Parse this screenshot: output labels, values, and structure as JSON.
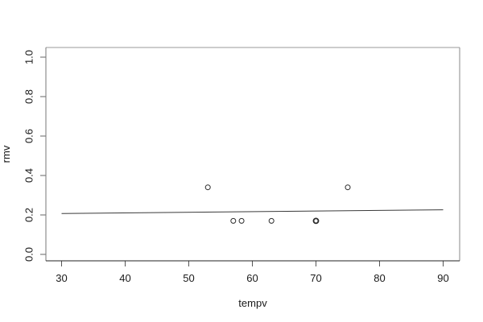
{
  "figure": {
    "kind": "r-base-scatter-plot",
    "background": "#ffffff"
  },
  "chart_data": {
    "type": "scatter",
    "title": "",
    "xlabel": "tempv",
    "ylabel": "rmv",
    "xlim": [
      30,
      90
    ],
    "ylim": [
      0.0,
      1.0
    ],
    "grid": false,
    "legend_position": "none",
    "point_style": "open-circle",
    "x_ticks": [
      30,
      40,
      50,
      60,
      70,
      80,
      90
    ],
    "x_tick_labels": [
      "30",
      "40",
      "50",
      "60",
      "70",
      "80",
      "90"
    ],
    "y_ticks": [
      0.0,
      0.2,
      0.4,
      0.6,
      0.8,
      1.0
    ],
    "y_tick_labels": [
      "0.0",
      "0.2",
      "0.4",
      "0.6",
      "0.8",
      "1.0"
    ],
    "points": [
      {
        "x": 53,
        "y": 0.34,
        "overplotted": false
      },
      {
        "x": 57,
        "y": 0.17,
        "overplotted": false
      },
      {
        "x": 58.3,
        "y": 0.17,
        "overplotted": false
      },
      {
        "x": 63,
        "y": 0.17,
        "overplotted": false
      },
      {
        "x": 70,
        "y": 0.17,
        "overplotted": true
      },
      {
        "x": 75,
        "y": 0.34,
        "overplotted": false
      }
    ],
    "fit_line": {
      "x1": 30,
      "y1": 0.207,
      "x2": 90,
      "y2": 0.226
    },
    "colors": {
      "background": "#ffffff",
      "point_stroke": "#2a2a2a",
      "fit_line": "#3a3a3a",
      "box_top": "#999999",
      "box_right": "#8a8a8a",
      "box_left": "#777777",
      "box_bottom": "#222222",
      "tick_x": "#555555",
      "tick_y": "#666666",
      "text": "#1a1a1a"
    }
  }
}
